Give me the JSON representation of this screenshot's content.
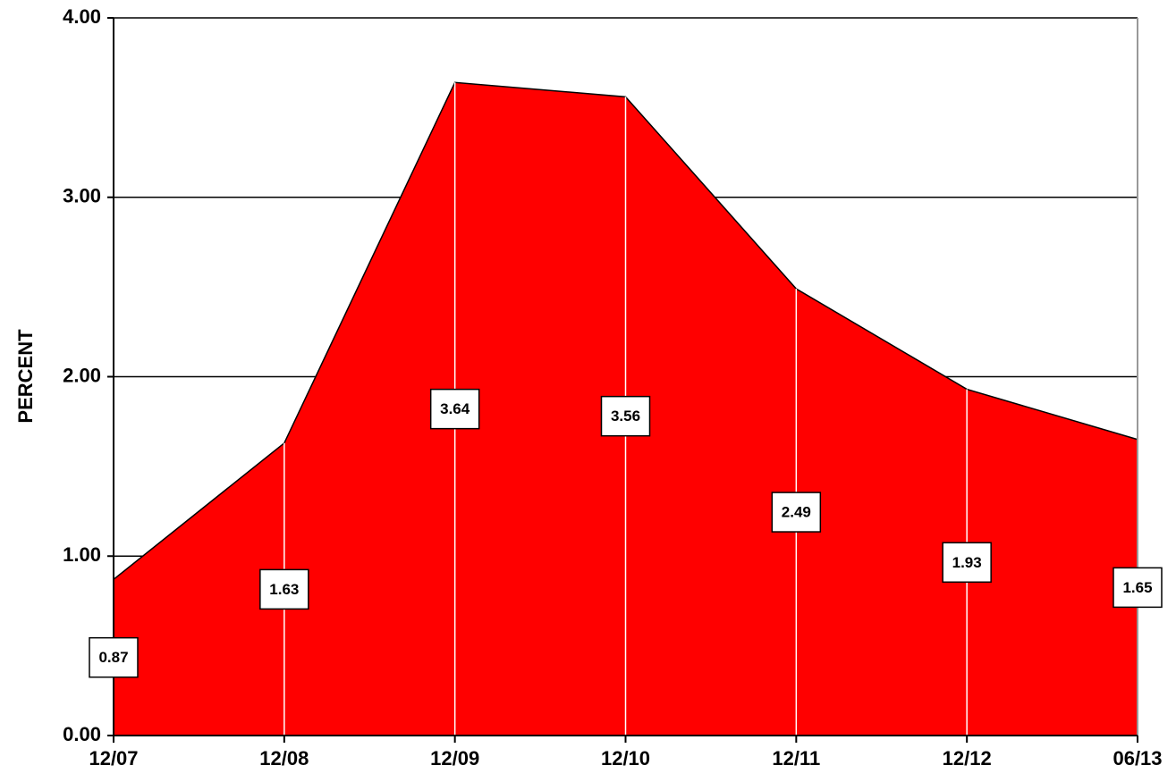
{
  "chart_data": {
    "type": "area",
    "y_label": "PERCENT",
    "categories": [
      "12/07",
      "12/08",
      "12/09",
      "12/10",
      "12/11",
      "12/12",
      "06/13"
    ],
    "values": [
      0.87,
      1.63,
      3.64,
      3.56,
      2.49,
      1.93,
      1.65
    ],
    "color": "#ff0000",
    "ylim": [
      0,
      4
    ],
    "yticks": [
      {
        "value": 0,
        "label": "0.00"
      },
      {
        "value": 1,
        "label": "1.00"
      },
      {
        "value": 2,
        "label": "2.00"
      },
      {
        "value": 3,
        "label": "3.00"
      },
      {
        "value": 4,
        "label": "4.00"
      }
    ],
    "grid": true
  }
}
